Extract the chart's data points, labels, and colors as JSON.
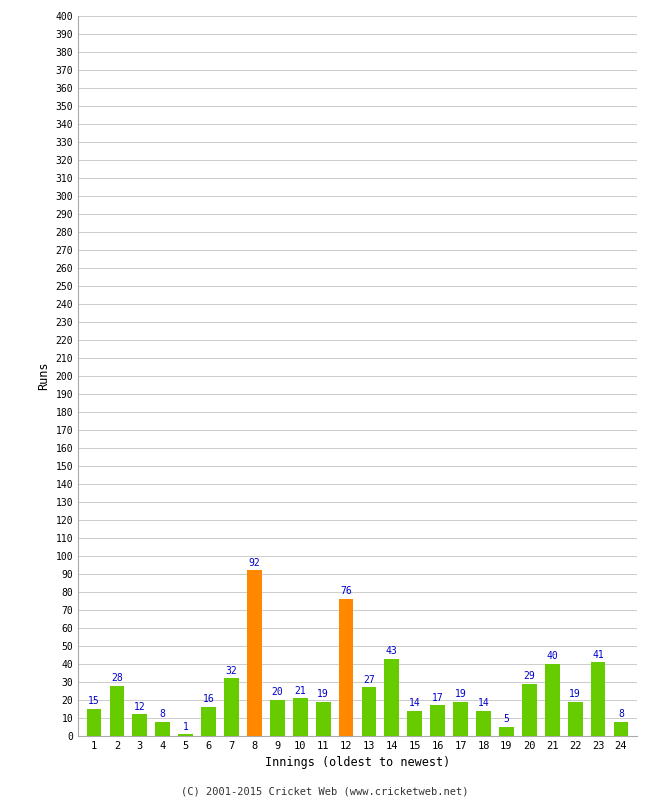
{
  "innings": [
    1,
    2,
    3,
    4,
    5,
    6,
    7,
    8,
    9,
    10,
    11,
    12,
    13,
    14,
    15,
    16,
    17,
    18,
    19,
    20,
    21,
    22,
    23,
    24
  ],
  "runs": [
    15,
    28,
    12,
    8,
    1,
    16,
    32,
    92,
    20,
    21,
    19,
    76,
    27,
    43,
    14,
    17,
    19,
    14,
    5,
    29,
    40,
    19,
    41,
    8
  ],
  "bar_colors": [
    "#66cc00",
    "#66cc00",
    "#66cc00",
    "#66cc00",
    "#66cc00",
    "#66cc00",
    "#66cc00",
    "#ff8800",
    "#66cc00",
    "#66cc00",
    "#66cc00",
    "#ff8800",
    "#66cc00",
    "#66cc00",
    "#66cc00",
    "#66cc00",
    "#66cc00",
    "#66cc00",
    "#66cc00",
    "#66cc00",
    "#66cc00",
    "#66cc00",
    "#66cc00",
    "#66cc00"
  ],
  "xlabel": "Innings (oldest to newest)",
  "ylabel": "Runs",
  "ylim": [
    0,
    400
  ],
  "background_color": "#ffffff",
  "grid_color": "#cccccc",
  "label_color": "#0000cc",
  "footer": "(C) 2001-2015 Cricket Web (www.cricketweb.net)",
  "fig_width": 6.5,
  "fig_height": 8.0,
  "dpi": 100
}
